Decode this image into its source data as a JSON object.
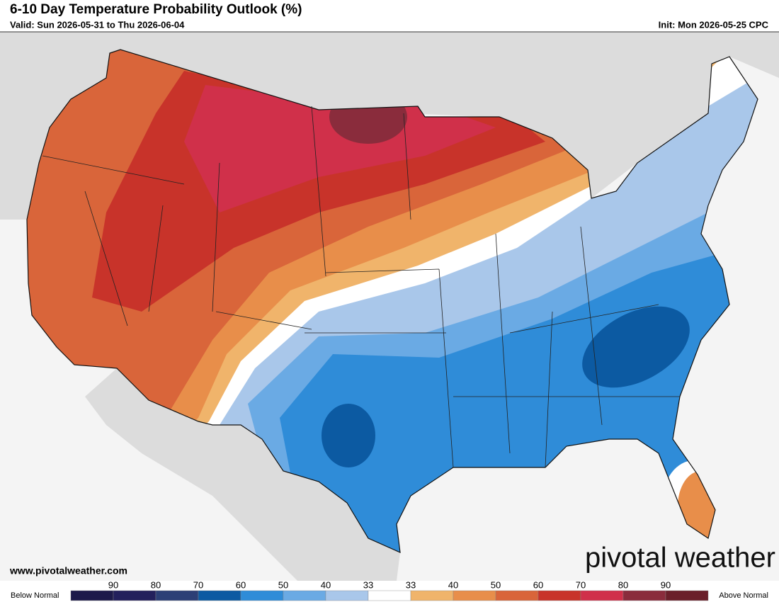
{
  "header": {
    "title": "6-10 Day Temperature Probability Outlook (%)",
    "valid": "Valid: Sun 2026-05-31 to Thu 2026-06-04",
    "init": "Init: Mon 2026-05-25 CPC"
  },
  "footer": {
    "website": "www.pivotalweather.com",
    "brand": "pivotal weather"
  },
  "legend": {
    "below": "Below Normal",
    "above": "Above Normal",
    "labels": [
      90,
      80,
      70,
      60,
      50,
      40,
      33,
      33,
      40,
      50,
      60,
      70,
      80,
      90
    ],
    "colors": [
      "#1d1a4a",
      "#23205c",
      "#2c3f76",
      "#0c5aa2",
      "#2f8cd8",
      "#6aaae4",
      "#a9c7ea",
      "#ffffff",
      "#f0b46b",
      "#e88e4a",
      "#d9653a",
      "#c8332a",
      "#d0304a",
      "#8a2c3c",
      "#6b1f2a"
    ]
  }
}
